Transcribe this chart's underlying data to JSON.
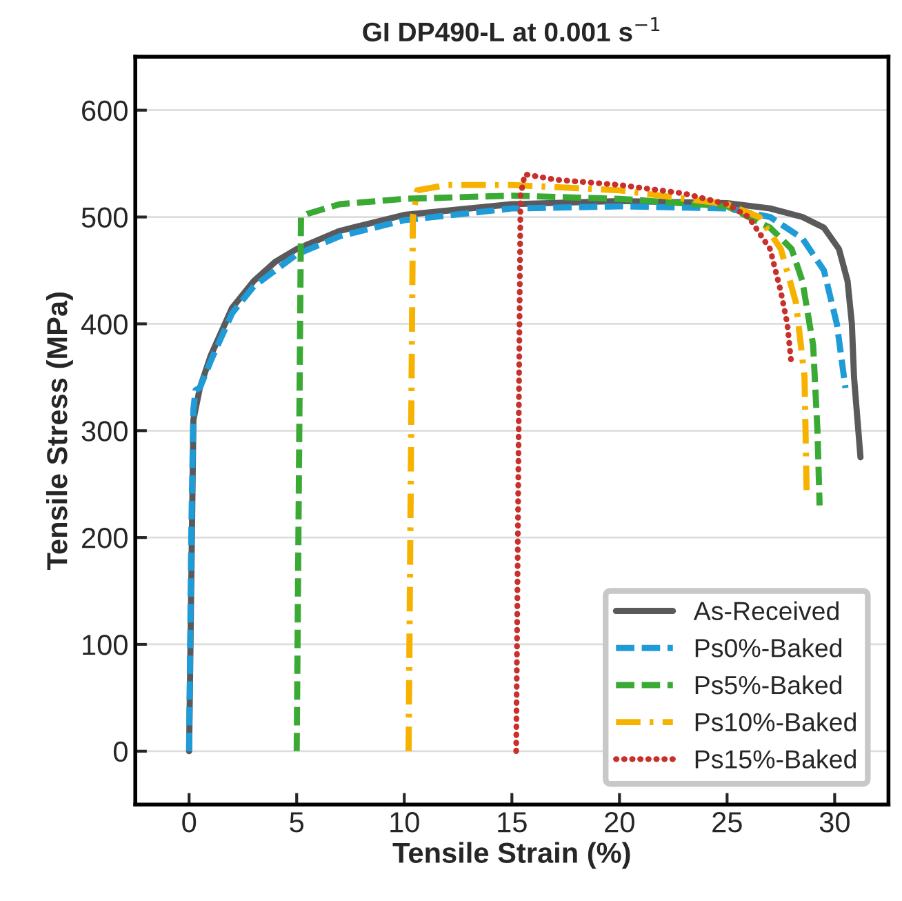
{
  "chart_data": {
    "type": "line",
    "title": "GI DP490-L at 0.001 s$^{−1}$",
    "xlabel": "Tensile Strain (%)",
    "ylabel": "Tensile Stress (MPa)",
    "xlim": [
      -2.5,
      32.5
    ],
    "ylim": [
      -50,
      650
    ],
    "xticks": [
      0,
      5,
      10,
      15,
      20,
      25,
      30
    ],
    "yticks": [
      0,
      100,
      200,
      300,
      400,
      500,
      600
    ],
    "grid": "y",
    "legend": "bottom right",
    "marker": "none",
    "series": [
      {
        "name": "As-Received",
        "color": "#5a5a5c",
        "line_style": "solid",
        "x": [
          0,
          0.2,
          0.5,
          1,
          2,
          3,
          4,
          5,
          7,
          10,
          15,
          20,
          25,
          27,
          28.5,
          29.5,
          30.2,
          30.6,
          30.8,
          30.9,
          31.1,
          31.2
        ],
        "values": [
          0,
          310,
          340,
          370,
          415,
          440,
          458,
          470,
          487,
          502,
          512,
          515,
          513,
          508,
          500,
          490,
          470,
          440,
          400,
          350,
          300,
          275
        ]
      },
      {
        "name": "Ps0%-Baked",
        "color": "#1f9bd7",
        "line_style": "dashed",
        "x": [
          0,
          0.1,
          0.2,
          0.3,
          0.5,
          1,
          2,
          3,
          5,
          7,
          10,
          15,
          20,
          25,
          27,
          28.5,
          29.5,
          30.1,
          30.5
        ],
        "values": [
          0,
          200,
          320,
          338,
          340,
          365,
          410,
          435,
          465,
          482,
          497,
          508,
          510,
          508,
          500,
          480,
          450,
          400,
          340
        ]
      },
      {
        "name": "Ps5%-Baked",
        "color": "#3aaa35",
        "line_style": "dashed",
        "x": [
          5.0,
          5.2,
          5.5,
          7,
          10,
          15,
          20,
          25,
          27,
          28,
          28.5,
          29,
          29.2,
          29.3
        ],
        "values": [
          0,
          500,
          503,
          512,
          517,
          520,
          517,
          510,
          490,
          470,
          440,
          380,
          300,
          230
        ]
      },
      {
        "name": "Ps10%-Baked",
        "color": "#f7b200",
        "line_style": "dashdot",
        "x": [
          10.2,
          10.4,
          10.6,
          12,
          15,
          20,
          25,
          26.5,
          27.5,
          28.2,
          28.6,
          28.7
        ],
        "values": [
          0,
          500,
          525,
          530,
          530,
          525,
          512,
          500,
          470,
          420,
          350,
          240
        ]
      },
      {
        "name": "Ps15%-Baked",
        "color": "#c8302c",
        "line_style": "dotted",
        "x": [
          15.2,
          15.4,
          15.6,
          17,
          20,
          23,
          25,
          26,
          27,
          27.5,
          27.8,
          28
        ],
        "values": [
          0,
          520,
          540,
          535,
          530,
          522,
          512,
          500,
          470,
          430,
          400,
          360
        ]
      }
    ]
  }
}
